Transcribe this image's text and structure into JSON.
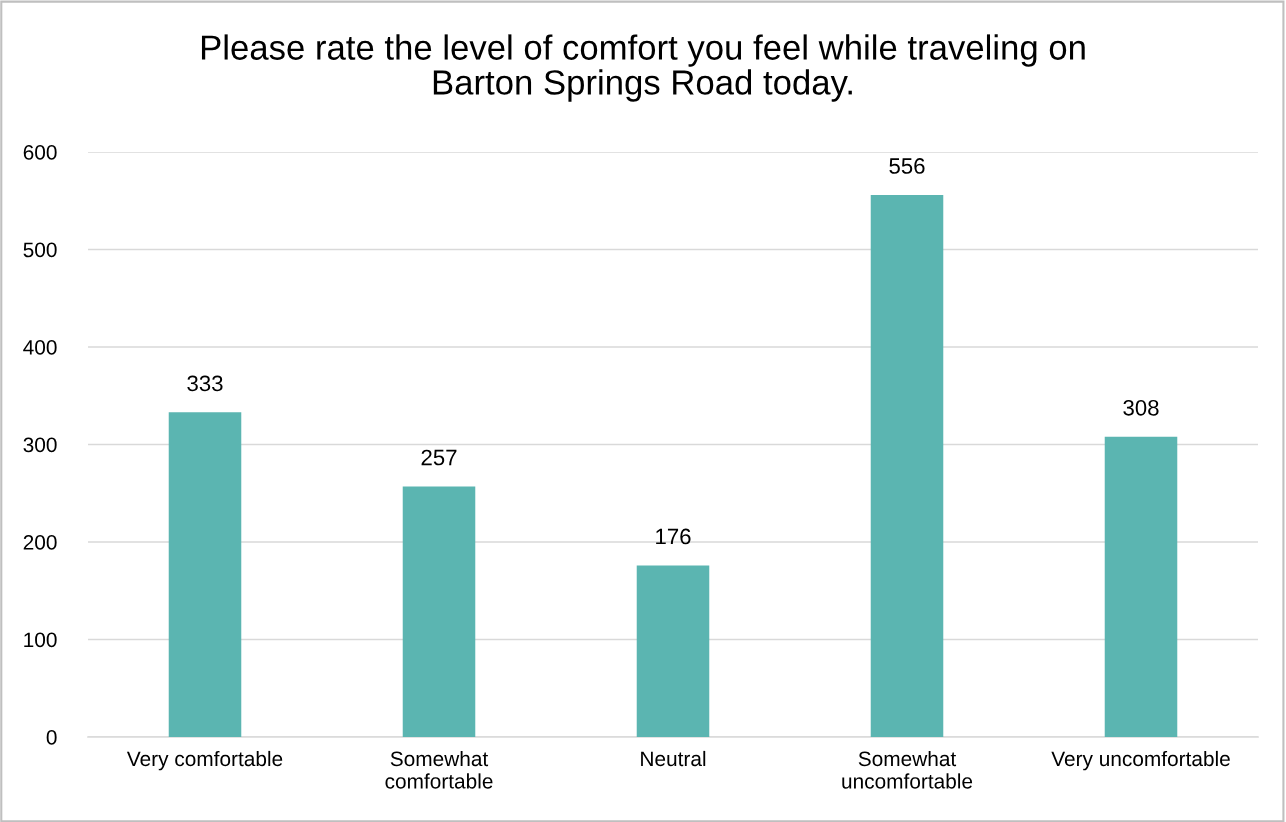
{
  "chart_data": {
    "type": "bar",
    "title": "Please rate the level of comfort you feel while traveling on\nBarton Springs Road today.",
    "categories": [
      "Very comfortable",
      "Somewhat\ncomfortable",
      "Neutral",
      "Somewhat\nuncomfortable",
      "Very uncomfortable"
    ],
    "values": [
      333,
      257,
      176,
      556,
      308
    ],
    "color": "#5bb5b1",
    "ylim": [
      0,
      600
    ],
    "yticks": [
      0,
      100,
      200,
      300,
      400,
      500,
      600
    ],
    "grid": "y",
    "data_labels": true
  }
}
